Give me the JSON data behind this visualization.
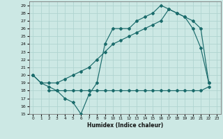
{
  "xlabel": "Humidex (Indice chaleur)",
  "bg_color": "#cce8e4",
  "line_color": "#1a6b6b",
  "grid_color": "#b0d4d0",
  "xlim": [
    -0.5,
    23.5
  ],
  "ylim": [
    15,
    29.5
  ],
  "yticks": [
    15,
    16,
    17,
    18,
    19,
    20,
    21,
    22,
    23,
    24,
    25,
    26,
    27,
    28,
    29
  ],
  "xticks": [
    0,
    1,
    2,
    3,
    4,
    5,
    6,
    7,
    8,
    9,
    10,
    11,
    12,
    13,
    14,
    15,
    16,
    17,
    18,
    19,
    20,
    21,
    22,
    23
  ],
  "line1_x": [
    0,
    1,
    2,
    3,
    4,
    5,
    6,
    7,
    8,
    9,
    10,
    11,
    12,
    13,
    14,
    15,
    16,
    17,
    18,
    19,
    20,
    21,
    22
  ],
  "line1_y": [
    20,
    19,
    18.5,
    18,
    17,
    16.5,
    15,
    17.5,
    19,
    24,
    26,
    26,
    26,
    27,
    27.5,
    28,
    29,
    28.5,
    28,
    27.5,
    26,
    23.5,
    19
  ],
  "line2_x": [
    0,
    1,
    2,
    3,
    4,
    5,
    6,
    7,
    8,
    9,
    10,
    11,
    12,
    13,
    14,
    15,
    16,
    17,
    18,
    19,
    20,
    21,
    22
  ],
  "line2_y": [
    20,
    19,
    19,
    19,
    19.5,
    20,
    20.5,
    21,
    22,
    23,
    24,
    24.5,
    25,
    25.5,
    26,
    26.5,
    27,
    28.5,
    28,
    27.5,
    27,
    26,
    19
  ],
  "line3_x": [
    2,
    3,
    4,
    5,
    6,
    7,
    8,
    9,
    10,
    11,
    12,
    13,
    14,
    15,
    16,
    17,
    18,
    19,
    20,
    21,
    22
  ],
  "line3_y": [
    18,
    18,
    18,
    18,
    18,
    18,
    18,
    18,
    18,
    18,
    18,
    18,
    18,
    18,
    18,
    18,
    18,
    18,
    18,
    18,
    18.5
  ]
}
